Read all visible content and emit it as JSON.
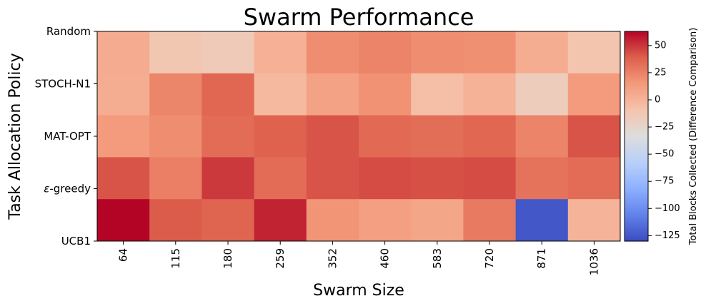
{
  "chart_data": {
    "type": "heatmap",
    "title": "Swarm Performance",
    "xlabel": "Swarm Size",
    "ylabel": "Task Allocation Policy",
    "x_categories": [
      "64",
      "115",
      "180",
      "259",
      "352",
      "460",
      "583",
      "720",
      "871",
      "1036"
    ],
    "y_categories": [
      "Random",
      "STOCH-N1",
      "MAT-OPT",
      "ε-greedy",
      "UCB1"
    ],
    "y_category_display": [
      "Random",
      "STOCH-N1",
      "MAT-OPT",
      "-greedy",
      "UCB1"
    ],
    "y_category_symbol": "ε",
    "values": [
      [
        5,
        -12,
        -15,
        2,
        20,
        24,
        20,
        19,
        4,
        -10
      ],
      [
        4,
        23,
        36,
        -3,
        10,
        18,
        -6,
        1,
        -17,
        14
      ],
      [
        14,
        20,
        34,
        38,
        42,
        35,
        33,
        36,
        24,
        42
      ],
      [
        42,
        26,
        49,
        34,
        42,
        44,
        43,
        44,
        31,
        34
      ],
      [
        64,
        40,
        37,
        55,
        17,
        12,
        8,
        28,
        -125,
        0
      ]
    ],
    "colormap": "coolwarm",
    "vmin": -130,
    "vmax": 63,
    "colorbar": {
      "label": "Total Blocks Collected (Difference Comparison)",
      "ticks": [
        50,
        25,
        0,
        -25,
        -50,
        -75,
        -100,
        -125
      ]
    }
  }
}
